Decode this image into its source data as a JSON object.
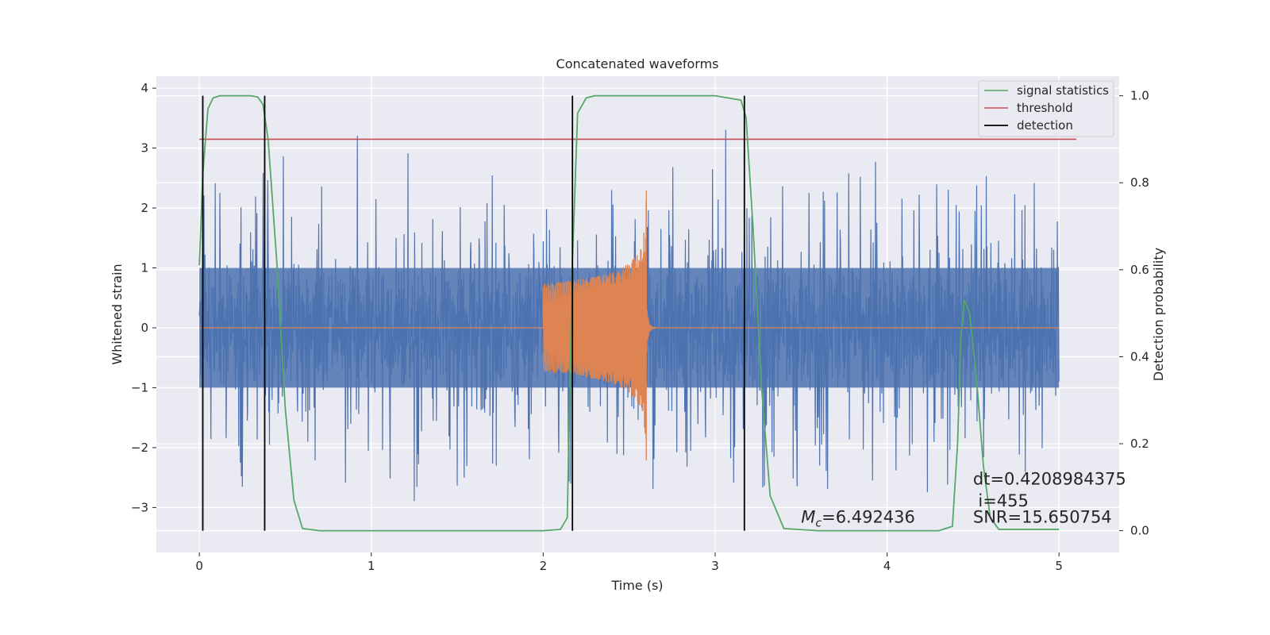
{
  "chart_data": {
    "type": "line",
    "title": "Concatenated waveforms",
    "xlabel": "Time (s)",
    "ylabel": "Whitened strain",
    "y2label": "Detection probability",
    "xlim": [
      -0.25,
      5.35
    ],
    "ylim": [
      -3.75,
      4.2
    ],
    "y2lim": [
      -0.05,
      1.045
    ],
    "xticks": [
      0,
      1,
      2,
      3,
      4,
      5
    ],
    "yticks": [
      -3,
      -2,
      -1,
      0,
      1,
      2,
      3,
      4
    ],
    "y2ticks": [
      0.0,
      0.2,
      0.4,
      0.6,
      0.8,
      1.0
    ],
    "grid": true,
    "legend_position": "top-right",
    "legend": [
      "signal statistics",
      "threshold",
      "detection"
    ],
    "series": [
      {
        "name": "signal statistics",
        "axis": "right",
        "color": "#55a868",
        "x": [
          0.0,
          0.02,
          0.05,
          0.08,
          0.12,
          0.2,
          0.3,
          0.34,
          0.37,
          0.4,
          0.45,
          0.5,
          0.55,
          0.6,
          0.7,
          1.0,
          1.5,
          2.0,
          2.1,
          2.14,
          2.17,
          2.2,
          2.25,
          2.3,
          2.5,
          3.0,
          3.15,
          3.18,
          3.22,
          3.27,
          3.32,
          3.4,
          3.6,
          4.0,
          4.3,
          4.38,
          4.41,
          4.43,
          4.45,
          4.48,
          4.52,
          4.56,
          4.6,
          4.65,
          4.8,
          5.0
        ],
        "y": [
          0.61,
          0.82,
          0.97,
          0.995,
          1.0,
          1.0,
          1.0,
          0.997,
          0.98,
          0.9,
          0.62,
          0.28,
          0.07,
          0.005,
          0.0,
          0.0,
          0.0,
          0.0,
          0.003,
          0.03,
          0.62,
          0.96,
          0.995,
          1.0,
          1.0,
          1.0,
          0.99,
          0.95,
          0.7,
          0.33,
          0.08,
          0.005,
          0.0,
          0.0,
          0.0,
          0.01,
          0.2,
          0.45,
          0.53,
          0.5,
          0.35,
          0.15,
          0.03,
          0.003,
          0.003,
          0.003
        ]
      },
      {
        "name": "threshold",
        "axis": "right",
        "color": "#c44e52",
        "x": [
          0.0,
          5.1
        ],
        "y": [
          0.9,
          0.9
        ]
      },
      {
        "name": "detection",
        "axis": "right",
        "color": "#000000",
        "vlines_x": [
          0.02,
          0.38,
          2.17,
          3.17
        ],
        "vlines_y": [
          0.0,
          1.0
        ]
      },
      {
        "axis": "left",
        "color": "#4c72b0",
        "x_range": [
          0,
          5
        ],
        "envelope": 1.3,
        "spike_extent": 3.45
      },
      {
        "axis": "left",
        "color": "#dd8452",
        "x_range": [
          2.0,
          2.6
        ],
        "peak": 2.6
      }
    ],
    "annotations": [
      {
        "x": 3.5,
        "y": -3.25,
        "text": "=6.492436",
        "prefix": "M",
        "subscript": "c"
      },
      {
        "x": 4.5,
        "y": -2.62,
        "text": "dt=0.4208984375"
      },
      {
        "x": 4.53,
        "y": -2.98,
        "text": "i=455"
      },
      {
        "x": 4.5,
        "y": -3.25,
        "text": "SNR=15.650754"
      }
    ]
  }
}
